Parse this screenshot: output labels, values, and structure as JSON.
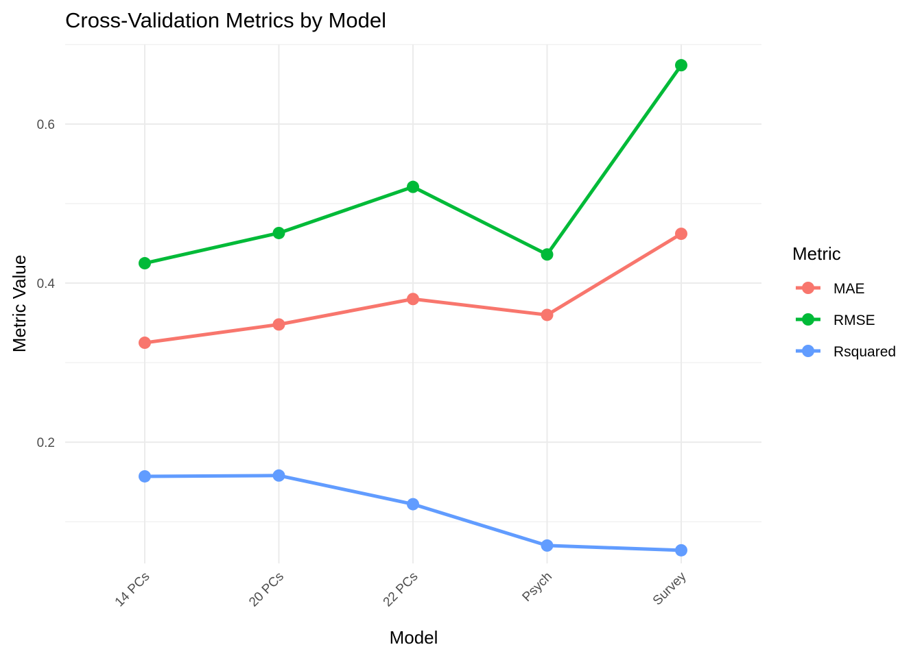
{
  "chart_data": {
    "type": "line",
    "title": "Cross-Validation Metrics by Model",
    "xlabel": "Model",
    "ylabel": "Metric Value",
    "categories": [
      "14 PCs",
      "20 PCs",
      "22 PCs",
      "Psych",
      "Survey"
    ],
    "y_ticks": [
      0.2,
      0.4,
      0.6
    ],
    "y_tick_labels": [
      "0.2",
      "0.4",
      "0.6"
    ],
    "ylim": [
      0.0475,
      0.7
    ],
    "grid": true,
    "legend": {
      "title": "Metric",
      "position": "right"
    },
    "series": [
      {
        "name": "MAE",
        "color": "#F8766D",
        "values": [
          0.325,
          0.348,
          0.38,
          0.36,
          0.462
        ]
      },
      {
        "name": "RMSE",
        "color": "#00BA38",
        "values": [
          0.425,
          0.463,
          0.521,
          0.436,
          0.674
        ]
      },
      {
        "name": "Rsquared",
        "color": "#619CFF",
        "values": [
          0.157,
          0.158,
          0.122,
          0.07,
          0.064
        ]
      }
    ]
  }
}
